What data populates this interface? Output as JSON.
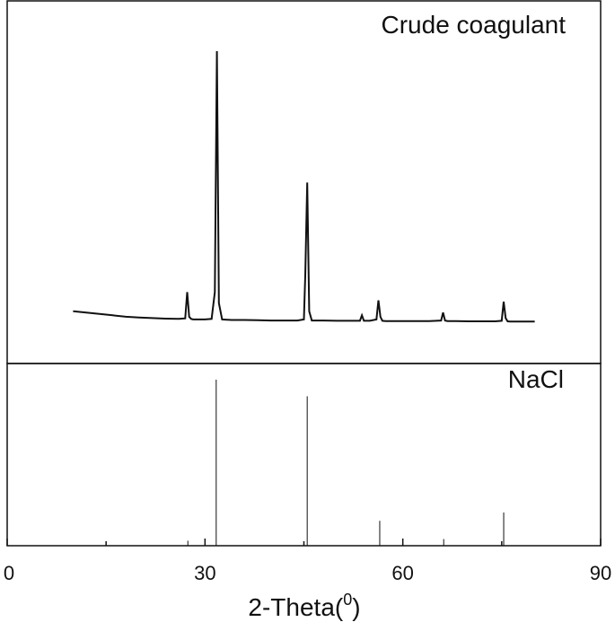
{
  "chart_data": {
    "type": "line",
    "xlabel": "2-Theta(",
    "xlabel_superscript": "0",
    "xlabel_suffix": ")",
    "xlim": [
      0,
      90
    ],
    "x_ticks": [
      "0",
      "30",
      "60",
      "90"
    ],
    "panels": [
      {
        "label": "Crude coagulant",
        "type": "line",
        "ylim": [
          0,
          1
        ],
        "series": [
          {
            "x": [
              10,
              12,
              14,
              16,
              18,
              20,
              22,
              24,
              26,
              27.0,
              27.3,
              27.6,
              27.9,
              28.2,
              29,
              30,
              31.0,
              31.5,
              31.8,
              32.1,
              32.6,
              34,
              36,
              38,
              40,
              42,
              44,
              45.0,
              45.2,
              45.5,
              45.8,
              46.2,
              48,
              50,
              52,
              53.5,
              53.8,
              54.1,
              55,
              56.0,
              56.3,
              56.6,
              56.9,
              57.4,
              60,
              62,
              64,
              65.8,
              66.1,
              66.4,
              66.8,
              68,
              70,
              72,
              74,
              75.0,
              75.3,
              75.6,
              75.9,
              76.3,
              78,
              80
            ],
            "y": [
              0.05,
              0.045,
              0.04,
              0.035,
              0.03,
              0.027,
              0.025,
              0.023,
              0.022,
              0.024,
              0.12,
              0.03,
              0.022,
              0.02,
              0.02,
              0.02,
              0.022,
              0.12,
              1.0,
              0.08,
              0.02,
              0.018,
              0.018,
              0.017,
              0.016,
              0.016,
              0.016,
              0.02,
              0.18,
              0.52,
              0.05,
              0.016,
              0.016,
              0.015,
              0.015,
              0.015,
              0.035,
              0.015,
              0.015,
              0.02,
              0.09,
              0.03,
              0.015,
              0.014,
              0.014,
              0.014,
              0.014,
              0.016,
              0.045,
              0.016,
              0.014,
              0.014,
              0.013,
              0.013,
              0.013,
              0.015,
              0.085,
              0.025,
              0.013,
              0.012,
              0.012,
              0.012
            ]
          }
        ]
      },
      {
        "label": "NaCl",
        "type": "bar",
        "ylim": [
          0,
          1
        ],
        "sticks": [
          {
            "x": 27.4,
            "y": 0.03
          },
          {
            "x": 31.7,
            "y": 1.0
          },
          {
            "x": 45.5,
            "y": 0.9
          },
          {
            "x": 56.5,
            "y": 0.15
          },
          {
            "x": 66.2,
            "y": 0.04
          },
          {
            "x": 75.3,
            "y": 0.2
          }
        ]
      }
    ]
  }
}
